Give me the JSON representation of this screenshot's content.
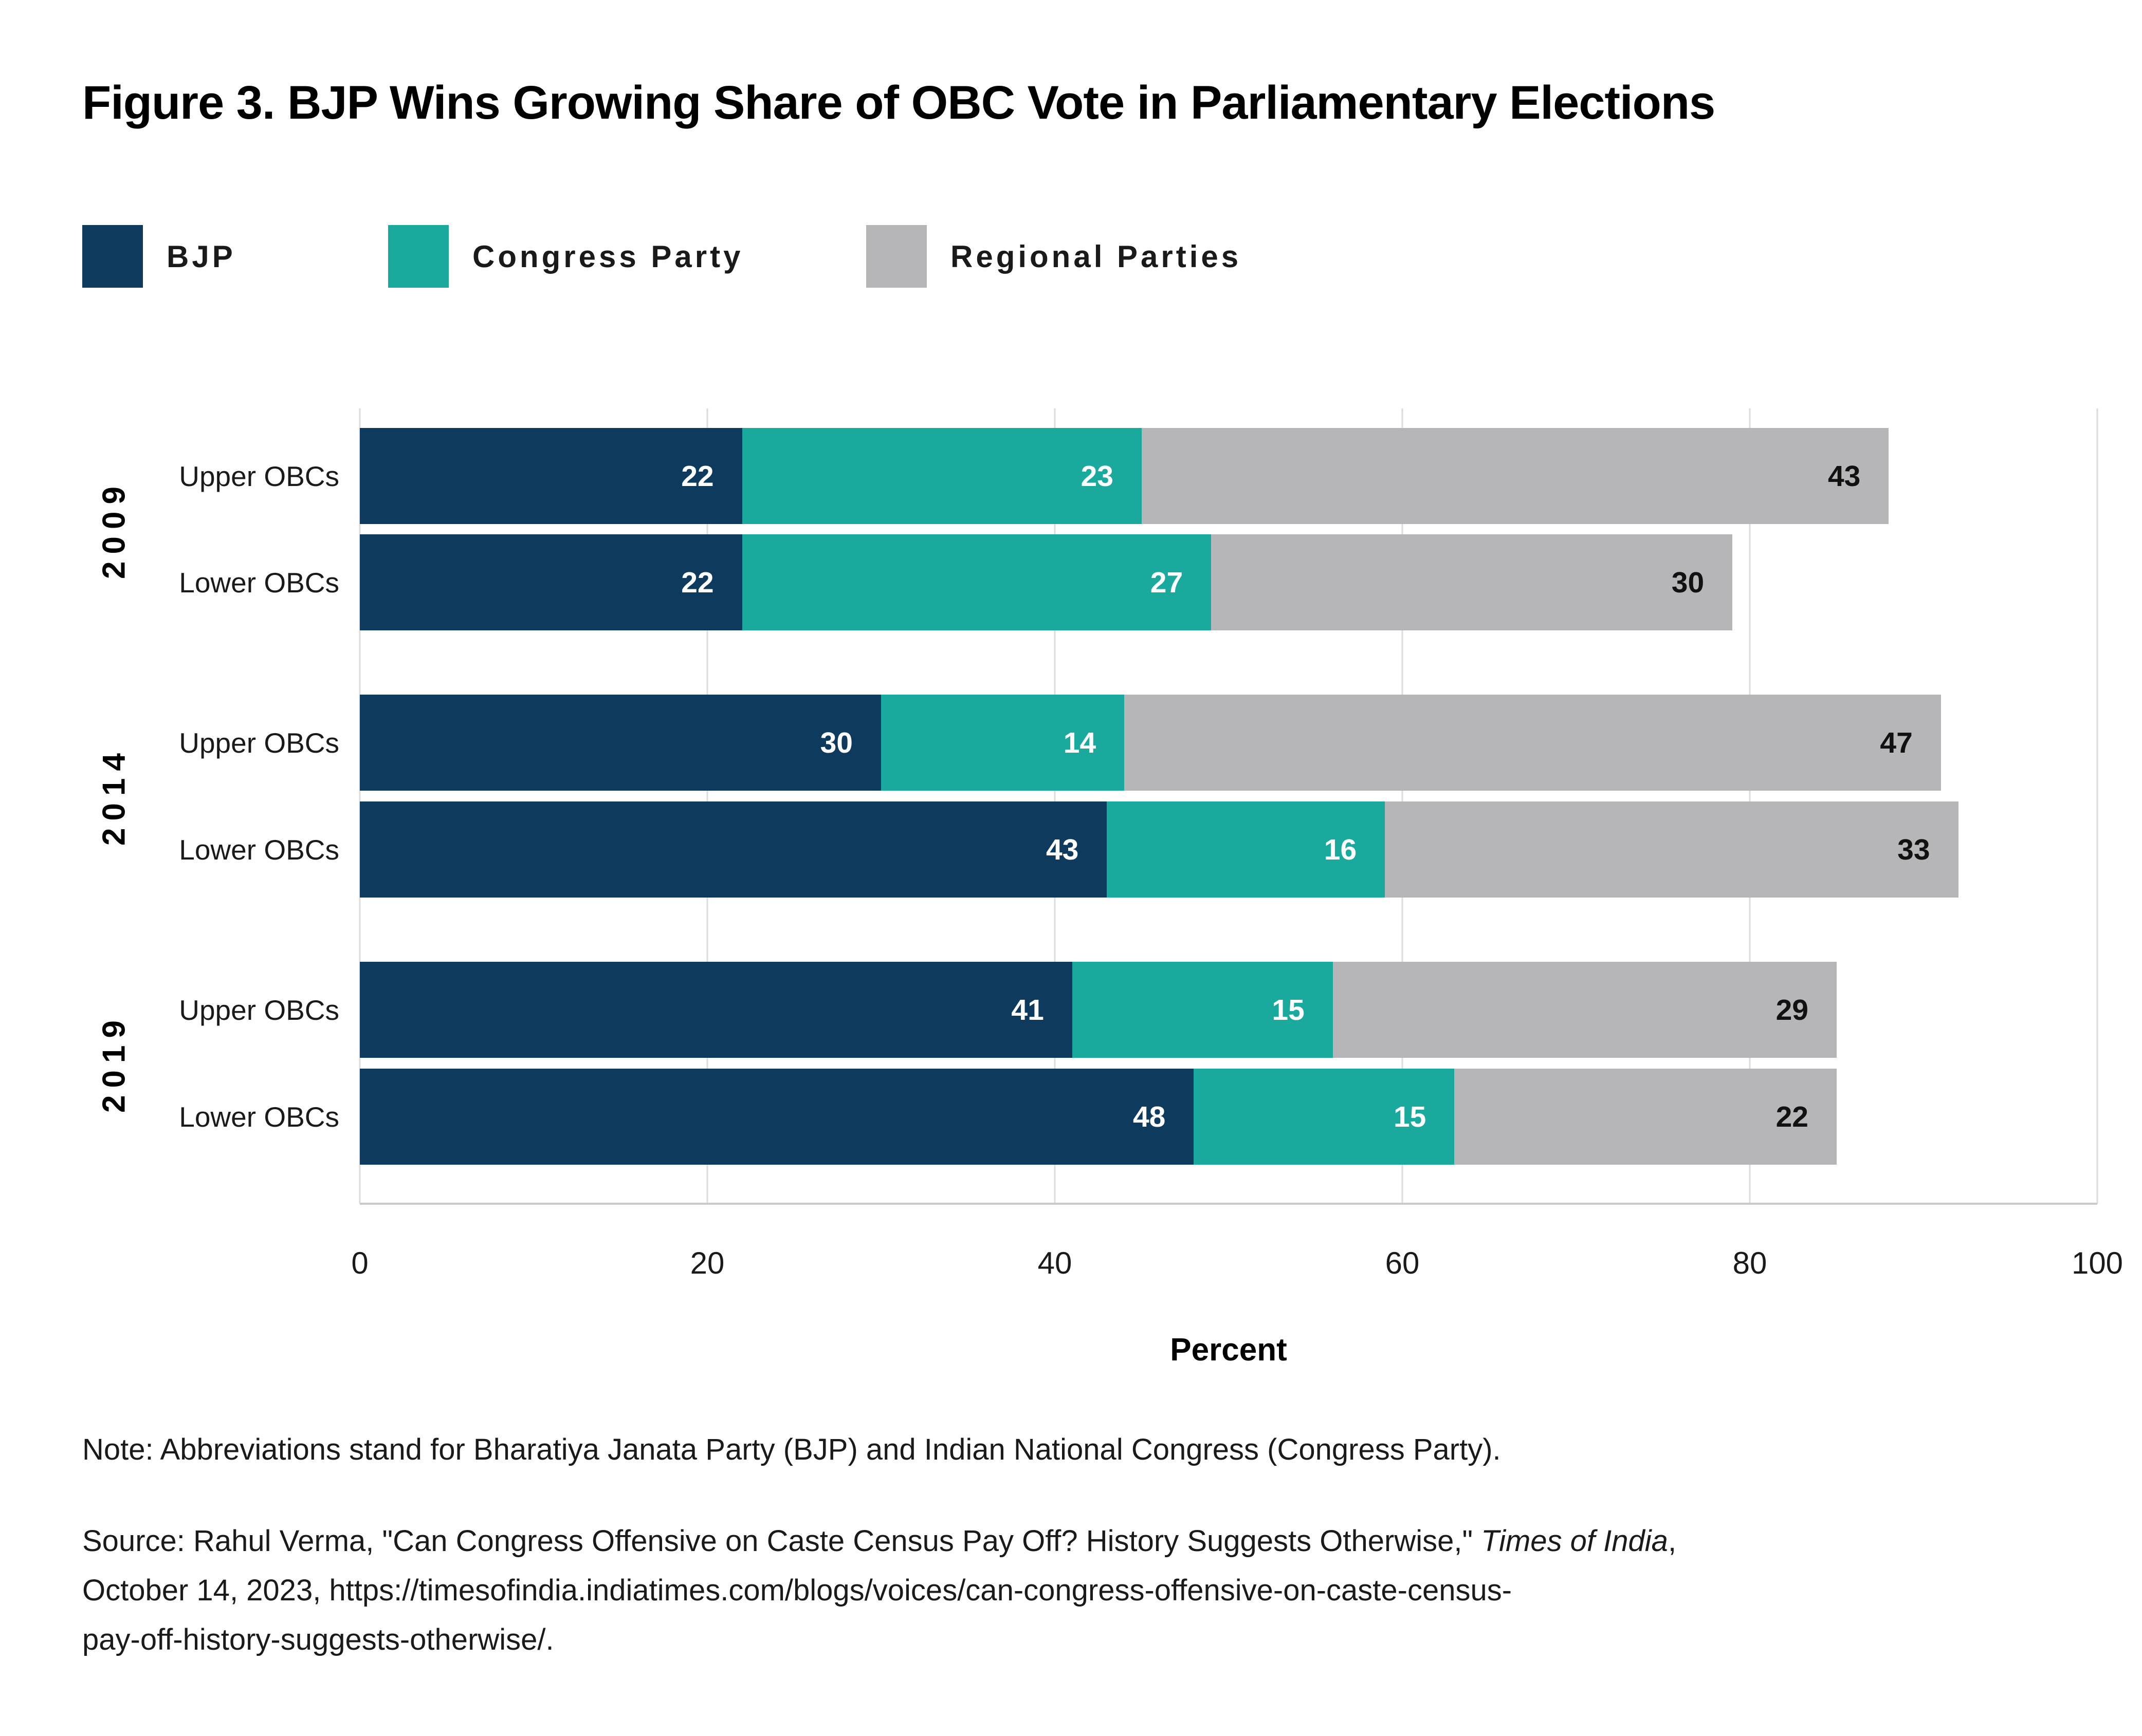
{
  "title": "Figure 3. BJP Wins Growing Share of OBC Vote in Parliamentary Elections",
  "legend": {
    "items": [
      {
        "label": "BJP",
        "color": "#0e3a5d"
      },
      {
        "label": "Congress Party",
        "color": "#1aa99d"
      },
      {
        "label": "Regional Parties",
        "color": "#b6b5b8"
      }
    ]
  },
  "chart_data": {
    "type": "bar",
    "orientation": "horizontal",
    "stacked": true,
    "title": "Figure 3. BJP Wins Growing Share of OBC Vote in Parliamentary Elections",
    "xlabel": "Percent",
    "xlim": [
      0,
      100
    ],
    "x_ticks": [
      0,
      20,
      40,
      60,
      80,
      100
    ],
    "grid": true,
    "legend_position": "top-left",
    "series_names": [
      "BJP",
      "Congress Party",
      "Regional Parties"
    ],
    "groups": [
      {
        "year": "2009",
        "rows": [
          {
            "label": "Upper OBCs",
            "values": [
              22,
              23,
              43
            ]
          },
          {
            "label": "Lower OBCs",
            "values": [
              22,
              27,
              30
            ]
          }
        ]
      },
      {
        "year": "2014",
        "rows": [
          {
            "label": "Upper OBCs",
            "values": [
              30,
              14,
              47
            ]
          },
          {
            "label": "Lower OBCs",
            "values": [
              43,
              16,
              33
            ]
          }
        ]
      },
      {
        "year": "2019",
        "rows": [
          {
            "label": "Upper OBCs",
            "values": [
              41,
              15,
              29
            ]
          },
          {
            "label": "Lower OBCs",
            "values": [
              48,
              15,
              22
            ]
          }
        ]
      }
    ]
  },
  "note": "Note: Abbreviations stand for Bharatiya Janata Party (BJP) and Indian National Congress (Congress Party).",
  "source_lines": [
    {
      "pre": "Source: Rahul Verma, \"Can Congress Offensive on Caste Census Pay Off? History Suggests Otherwise,\" ",
      "italic": "Times of India",
      "post": ","
    },
    {
      "pre": "October 14, 2023, https://timesofindia.indiatimes.com/blogs/voices/can-congress-offensive-on-caste-census-",
      "italic": "",
      "post": ""
    },
    {
      "pre": "pay-off-history-suggests-otherwise/.",
      "italic": "",
      "post": ""
    }
  ],
  "colors": {
    "background": "#ffffff",
    "bjp": "#0e3a5d",
    "congress_party": "#1aa99d",
    "regional_parties": "#b6b5b8",
    "gridline": "#dcdcdc",
    "axis_line": "#c9c9c9",
    "text": "#1a1a1a",
    "value_on_color": "#ffffff",
    "value_on_gray": "#111111"
  }
}
